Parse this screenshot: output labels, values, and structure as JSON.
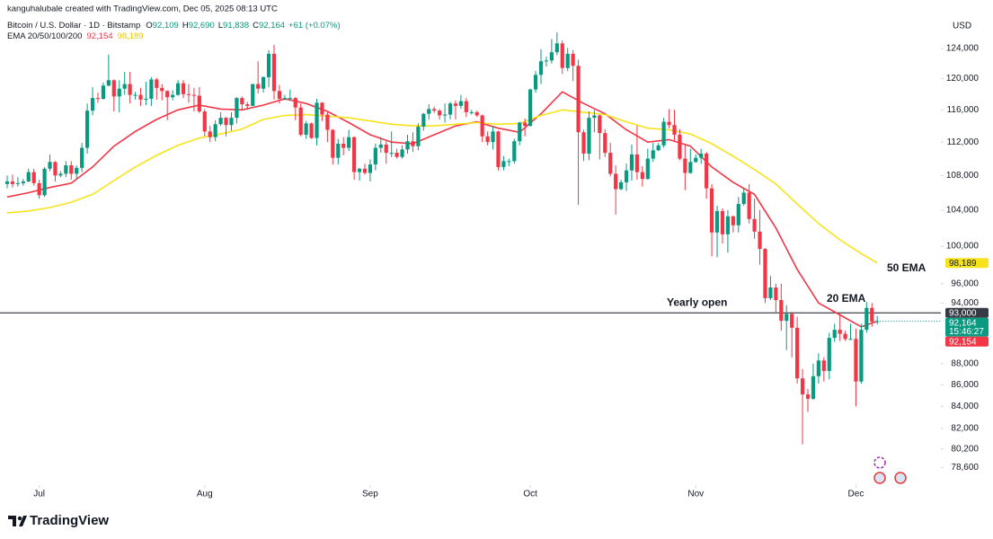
{
  "header": {
    "credit": "kanguhalubale created with TradingView.com, Dec 05, 2025 08:13 UTC"
  },
  "chart_data": {
    "type": "candlestick",
    "title": "Bitcoin / U.S. Dollar · 1D · Bitstamp",
    "ohlc_legend": [
      {
        "key": "O",
        "value": "92,109"
      },
      {
        "key": "H",
        "value": "92,690"
      },
      {
        "key": "L",
        "value": "91,838"
      },
      {
        "key": "C",
        "value": "92,164"
      }
    ],
    "change": "+61 (+0.07%)",
    "indicator": {
      "name": "EMA 20/50/100/200",
      "values": [
        "92,154",
        "98,189"
      ],
      "colors": [
        "#f23645",
        "#e6c800"
      ]
    },
    "currency": "USD",
    "log_scale": true,
    "grid": false,
    "up_color": "#089981",
    "down_color": "#f23645",
    "open": [
      107000,
      107300,
      107000,
      107100,
      107300,
      108400,
      107100,
      105700,
      108800,
      109600,
      108000,
      108200,
      109200,
      108200,
      108900,
      111300,
      115900,
      117500,
      117400,
      119100,
      119800,
      117700,
      118700,
      119300,
      117900,
      117900,
      117300,
      117400,
      119900,
      118800,
      118400,
      117600,
      117900,
      119400,
      118000,
      117900,
      117800,
      115800,
      113300,
      112600,
      114200,
      115000,
      114100,
      115000,
      117500,
      116700,
      116500,
      119300,
      118700,
      120200,
      123300,
      118400,
      117400,
      117500,
      117500,
      116300,
      112900,
      114300,
      112500,
      116900,
      115400,
      113500,
      110100,
      111800,
      111300,
      112600,
      108400,
      108800,
      108300,
      109300,
      111300,
      111700,
      110700,
      110700,
      110200,
      111100,
      112100,
      111500,
      113900,
      115500,
      116100,
      115900,
      115300,
      115400,
      116800,
      116500,
      117100,
      115700,
      115700,
      115300,
      112700,
      112000,
      113300,
      109000,
      109700,
      109700,
      112100,
      114400,
      114000,
      118600,
      120500,
      122300,
      122400,
      123500,
      124700,
      121400,
      123300,
      121700,
      113200,
      110600,
      115000,
      115300,
      113100,
      110700,
      108200,
      106400,
      107200,
      108600,
      110500,
      108400,
      107600,
      110000,
      111000,
      111600,
      114500,
      114100,
      112900,
      110000,
      108300,
      109600,
      110100,
      110600,
      106500,
      101500,
      103900,
      101300,
      103300,
      102300,
      104700,
      106000,
      103000,
      101600,
      99700,
      94500,
      95600,
      94300,
      92200,
      92900,
      91500,
      86600,
      85100,
      84700,
      86800,
      88300,
      87300,
      90500,
      91300,
      90900,
      90400,
      90400,
      86300,
      91300,
      93500,
      92109
    ],
    "high": [
      108000,
      108100,
      107800,
      107600,
      108800,
      108800,
      107500,
      109000,
      110500,
      109700,
      108500,
      109700,
      109700,
      109200,
      111900,
      116800,
      118900,
      118200,
      119500,
      123200,
      119900,
      119800,
      120900,
      120900,
      118300,
      118800,
      119600,
      120200,
      120100,
      119300,
      118500,
      118500,
      119800,
      119800,
      119300,
      118800,
      118900,
      116100,
      114000,
      114700,
      115700,
      115100,
      115700,
      117600,
      117700,
      117000,
      119300,
      122300,
      120300,
      123800,
      124500,
      119200,
      117900,
      118600,
      117600,
      116800,
      114600,
      114400,
      117400,
      117000,
      115800,
      113600,
      112400,
      112600,
      113500,
      112700,
      108900,
      109400,
      109900,
      111800,
      112600,
      112100,
      113300,
      111200,
      111600,
      112900,
      113200,
      114300,
      115600,
      116700,
      116400,
      116100,
      116800,
      117000,
      117200,
      117900,
      117500,
      116000,
      115900,
      115400,
      113300,
      113900,
      113400,
      110300,
      110000,
      112400,
      114500,
      114900,
      118700,
      121000,
      123900,
      122900,
      125300,
      126200,
      125100,
      124100,
      123800,
      122500,
      113500,
      115800,
      116000,
      115400,
      113600,
      111900,
      109200,
      107500,
      109400,
      111700,
      114000,
      109100,
      111200,
      111900,
      111900,
      115000,
      116100,
      116000,
      113600,
      111600,
      111200,
      110500,
      111200,
      110800,
      107000,
      104500,
      104200,
      104000,
      103400,
      105500,
      106600,
      107000,
      105300,
      104000,
      99800,
      96800,
      96000,
      96000,
      93800,
      93100,
      92600,
      87500,
      85600,
      88000,
      89000,
      88600,
      91000,
      91900,
      92900,
      91200,
      91900,
      91400,
      91900,
      94100,
      94000,
      92690
    ],
    "low": [
      106500,
      106600,
      106700,
      106800,
      107200,
      106800,
      105300,
      105500,
      108500,
      107300,
      107800,
      107800,
      107500,
      107500,
      108400,
      110600,
      115300,
      116900,
      117300,
      119000,
      115800,
      115700,
      117900,
      116800,
      117300,
      116500,
      116600,
      116500,
      117300,
      117200,
      114700,
      117200,
      117800,
      117500,
      116900,
      115800,
      115600,
      112700,
      112000,
      112100,
      114000,
      112700,
      113400,
      114300,
      115900,
      116000,
      116500,
      118100,
      118200,
      118900,
      117300,
      116800,
      117200,
      117200,
      114700,
      112700,
      112400,
      112400,
      111600,
      114600,
      112000,
      109300,
      109300,
      110400,
      110900,
      107500,
      107400,
      108100,
      107300,
      108600,
      110700,
      109400,
      110200,
      110000,
      110000,
      110600,
      110800,
      111000,
      113400,
      114800,
      115600,
      114800,
      114400,
      114800,
      114800,
      116100,
      115100,
      115400,
      115100,
      112000,
      111600,
      111100,
      108600,
      108600,
      109100,
      109400,
      111600,
      112700,
      113900,
      118200,
      119300,
      121600,
      122000,
      123100,
      120600,
      121000,
      119700,
      104600,
      109700,
      109800,
      113200,
      109900,
      110200,
      107900,
      103500,
      106300,
      106200,
      107400,
      107500,
      106700,
      107500,
      109600,
      110900,
      111300,
      113700,
      112200,
      109800,
      106300,
      108200,
      109500,
      109400,
      105300,
      98900,
      98800,
      100300,
      99300,
      101500,
      101500,
      104500,
      102500,
      100800,
      98000,
      94000,
      94300,
      93000,
      91200,
      89300,
      88600,
      86100,
      80600,
      83500,
      84600,
      86100,
      86300,
      86500,
      90100,
      90200,
      90200,
      90300,
      84000,
      86100,
      91000,
      91600,
      91838
    ],
    "close": [
      107300,
      107000,
      107100,
      107300,
      108400,
      107100,
      105700,
      108800,
      109600,
      108000,
      108200,
      109200,
      108200,
      108900,
      111300,
      115900,
      117500,
      117400,
      119100,
      119800,
      117700,
      118700,
      119300,
      117900,
      117900,
      117300,
      117400,
      119900,
      118800,
      118400,
      117600,
      117900,
      119400,
      118000,
      117900,
      117800,
      115800,
      113300,
      112600,
      114200,
      115000,
      114100,
      115000,
      117500,
      116700,
      116500,
      119300,
      118700,
      120200,
      123300,
      118400,
      117400,
      117500,
      117500,
      116300,
      112900,
      114300,
      112500,
      116900,
      115400,
      113500,
      110100,
      111800,
      111300,
      112600,
      108400,
      108800,
      108300,
      109300,
      111300,
      111700,
      110700,
      110700,
      110200,
      111100,
      112100,
      111500,
      113900,
      115500,
      116100,
      115900,
      115300,
      115400,
      116800,
      116500,
      117100,
      115700,
      115700,
      115300,
      112700,
      112000,
      113300,
      109000,
      109700,
      109700,
      112100,
      114400,
      114000,
      118600,
      120500,
      122300,
      122400,
      123500,
      124700,
      121400,
      123300,
      121700,
      113200,
      110600,
      115000,
      115300,
      113100,
      110700,
      108200,
      106400,
      107200,
      108600,
      110500,
      108400,
      107600,
      110000,
      111000,
      111600,
      114500,
      114100,
      112900,
      110000,
      108300,
      109600,
      110100,
      110600,
      106500,
      101500,
      103900,
      101300,
      103300,
      102300,
      104700,
      106000,
      103000,
      101600,
      99700,
      94500,
      95600,
      94300,
      92200,
      92900,
      91500,
      86600,
      85100,
      84700,
      86800,
      88300,
      87300,
      90500,
      91300,
      90900,
      90400,
      90400,
      86300,
      91300,
      93500,
      92103,
      92164
    ],
    "xticks": [
      {
        "value": 6,
        "label": "Jul"
      },
      {
        "value": 37,
        "label": "Aug"
      },
      {
        "value": 68,
        "label": "Sep"
      },
      {
        "value": 98,
        "label": "Oct"
      },
      {
        "value": 129,
        "label": "Nov"
      },
      {
        "value": 159,
        "label": "Dec"
      }
    ],
    "ylim": [
      77100,
      128200
    ],
    "yticks": [
      {
        "value": 124000,
        "label": "124,000"
      },
      {
        "value": 120000,
        "label": "120,000"
      },
      {
        "value": 116000,
        "label": "116,000"
      },
      {
        "value": 112000,
        "label": "112,000"
      },
      {
        "value": 108000,
        "label": "108,000"
      },
      {
        "value": 104000,
        "label": "104,000"
      },
      {
        "value": 100000,
        "label": "100,000"
      },
      {
        "value": 96000,
        "label": "96,000"
      },
      {
        "value": 94000,
        "label": "94,000"
      },
      {
        "value": 88000,
        "label": "88,000"
      },
      {
        "value": 86000,
        "label": "86,000"
      },
      {
        "value": 84000,
        "label": "84,000"
      },
      {
        "value": 82000,
        "label": "82,000"
      },
      {
        "value": 80200,
        "label": "80,200"
      },
      {
        "value": 78600,
        "label": "78,600"
      }
    ],
    "series": [
      {
        "name": "20 EMA",
        "color": "#f23645",
        "x": [
          0,
          4,
          8,
          12,
          16,
          20,
          24,
          28,
          32,
          36,
          40,
          44,
          48,
          52,
          56,
          60,
          64,
          68,
          72,
          76,
          80,
          84,
          88,
          92,
          96,
          100,
          104,
          108,
          112,
          116,
          120,
          124,
          128,
          132,
          136,
          140,
          144,
          148,
          152,
          156,
          160,
          163
        ],
        "values": [
          105500,
          106000,
          106600,
          107100,
          109000,
          111500,
          113300,
          114800,
          116000,
          116600,
          116100,
          116000,
          116600,
          117400,
          116800,
          115800,
          114400,
          112900,
          112000,
          111800,
          112900,
          114000,
          114500,
          113700,
          113200,
          115500,
          118300,
          116800,
          115500,
          113500,
          112000,
          112300,
          111500,
          109000,
          107200,
          105800,
          102000,
          97500,
          94000,
          92800,
          91600,
          92154
        ]
      },
      {
        "name": "50 EMA",
        "color": "#f7e31b",
        "x": [
          0,
          4,
          8,
          12,
          16,
          20,
          24,
          28,
          32,
          36,
          40,
          44,
          48,
          52,
          56,
          60,
          64,
          68,
          72,
          76,
          80,
          84,
          88,
          92,
          96,
          100,
          104,
          108,
          112,
          116,
          120,
          124,
          128,
          132,
          136,
          140,
          144,
          148,
          152,
          156,
          160,
          163
        ],
        "values": [
          103700,
          103900,
          104300,
          104900,
          105800,
          107400,
          109000,
          110400,
          111600,
          112500,
          113000,
          113600,
          114800,
          115300,
          115400,
          115200,
          115000,
          114600,
          114200,
          114000,
          114000,
          114200,
          114400,
          114200,
          114300,
          115300,
          116000,
          115700,
          115400,
          114500,
          113700,
          113500,
          113000,
          111800,
          110300,
          108700,
          107000,
          104700,
          102500,
          100700,
          99200,
          98189
        ]
      }
    ],
    "yearly_open": {
      "label": "Yearly open",
      "value": 93000
    },
    "price_labels": [
      {
        "value": 98189,
        "label": "98,189",
        "color": "#f7e31b",
        "text_color": "#131722"
      },
      {
        "value": 93000,
        "label": "93,000",
        "color": "#363a45",
        "text_color": "#ffffff"
      },
      {
        "value": 92164,
        "label": "92,164",
        "sublabel": "15:46:27",
        "color": "#089981",
        "text_color": "#ffffff"
      },
      {
        "value": 92154,
        "label": "92,154",
        "color": "#f23645",
        "text_color": "#ffffff"
      }
    ]
  },
  "footer": {
    "brand": "TradingView"
  }
}
